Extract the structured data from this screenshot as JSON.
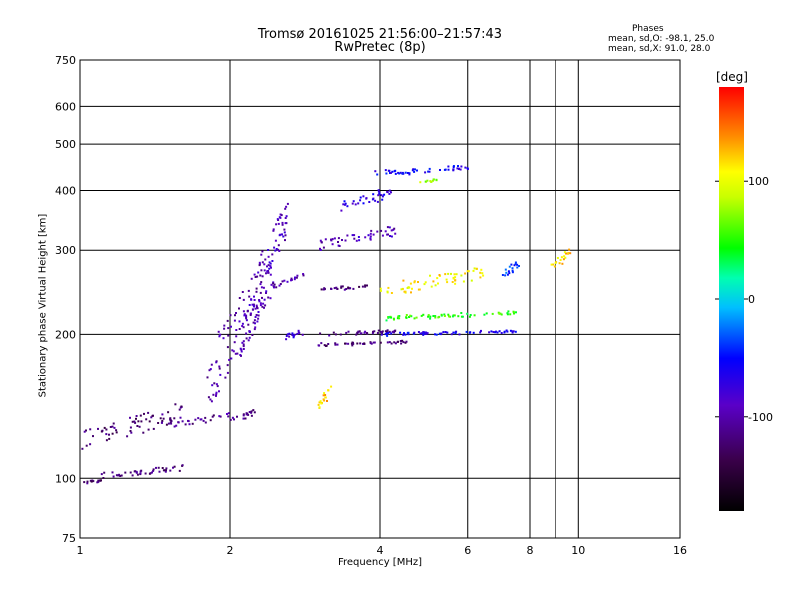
{
  "header": {
    "title_line1": "Tromsø 20161025 21:56:00–21:57:43",
    "title_line2": "RwPretec (8p)"
  },
  "info": {
    "heading": "Phases",
    "line_o": "mean, sd,O: -98.1, 25.0",
    "line_x": "mean, sd,X:  91.0, 28.0"
  },
  "colorbar": {
    "unit": "[deg]",
    "ticks": [
      100,
      0,
      -100
    ],
    "range": [
      -180,
      180
    ]
  },
  "chart_data": {
    "type": "scatter",
    "title": "Tromsø 20161025 21:56:00–21:57:43",
    "subtitle": "RwPretec (8p)",
    "xlabel": "Frequency [MHz]",
    "ylabel": "Stationary phase Virtual Height [km]",
    "x_scale": "log",
    "y_scale": "log",
    "xlim": [
      1,
      16
    ],
    "ylim": [
      75,
      750
    ],
    "x_ticks": [
      1,
      2,
      4,
      6,
      8,
      10,
      16
    ],
    "x_gridlines": [
      2,
      4,
      6,
      8,
      10
    ],
    "x_minor_gridlines": [
      9
    ],
    "y_ticks": [
      75,
      100,
      200,
      300,
      400,
      500,
      600,
      750
    ],
    "y_gridlines": [
      100,
      200,
      300,
      400,
      500,
      600
    ],
    "grid": true,
    "colorscale": "phase [deg], -180 (black) to 180 (red)",
    "traces": [
      {
        "f": [
          1.0,
          1.12
        ],
        "h": [
          98,
          100
        ],
        "phase": -120,
        "label_o": "O"
      },
      {
        "f": [
          1.0,
          1.6
        ],
        "h": [
          115,
          145
        ],
        "phase": -120
      },
      {
        "f": [
          1.1,
          1.6
        ],
        "h": [
          100,
          107
        ],
        "phase": -120
      },
      {
        "f": [
          1.5,
          2.25
        ],
        "h": [
          128,
          140
        ],
        "phase": -110
      },
      {
        "f": [
          1.8,
          2.3
        ],
        "h": [
          140,
          290
        ],
        "phase": -100
      },
      {
        "f": [
          2.1,
          2.4
        ],
        "h": [
          180,
          290
        ],
        "phase": -95
      },
      {
        "f": [
          2.3,
          2.6
        ],
        "h": [
          250,
          390
        ],
        "phase": -90
      },
      {
        "f": [
          2.5,
          2.8
        ],
        "h": [
          195,
          205
        ],
        "phase": -80
      },
      {
        "f": [
          2.4,
          2.8
        ],
        "h": [
          250,
          270
        ],
        "phase": -100
      },
      {
        "f": [
          3.0,
          4.5
        ],
        "h": [
          190,
          195
        ],
        "phase": -120
      },
      {
        "f": [
          3.0,
          4.3
        ],
        "h": [
          200,
          205
        ],
        "phase": -115
      },
      {
        "f": [
          3.0,
          3.8
        ],
        "h": [
          248,
          255
        ],
        "phase": -120
      },
      {
        "f": [
          3.0,
          4.3
        ],
        "h": [
          300,
          340
        ],
        "phase": -95
      },
      {
        "f": [
          3.3,
          4.2
        ],
        "h": [
          360,
          410
        ],
        "phase": -70
      },
      {
        "f": [
          3.8,
          6.0
        ],
        "h": [
          430,
          455
        ],
        "phase": -60
      },
      {
        "f": [
          4.0,
          7.5
        ],
        "h": [
          200,
          205
        ],
        "phase": -60
      },
      {
        "f": [
          4.0,
          7.5
        ],
        "h": [
          215,
          225
        ],
        "phase": 50
      },
      {
        "f": [
          4.0,
          6.5
        ],
        "h": [
          240,
          280
        ],
        "phase": 110
      },
      {
        "f": [
          3.0,
          3.2
        ],
        "h": [
          140,
          160
        ],
        "phase": 120
      },
      {
        "f": [
          4.8,
          5.2
        ],
        "h": [
          415,
          425
        ],
        "phase": 80
      },
      {
        "f": [
          7.0,
          7.6
        ],
        "h": [
          260,
          290
        ],
        "phase": -40
      },
      {
        "f": [
          8.8,
          9.6
        ],
        "h": [
          270,
          305
        ],
        "phase": 120
      }
    ]
  }
}
